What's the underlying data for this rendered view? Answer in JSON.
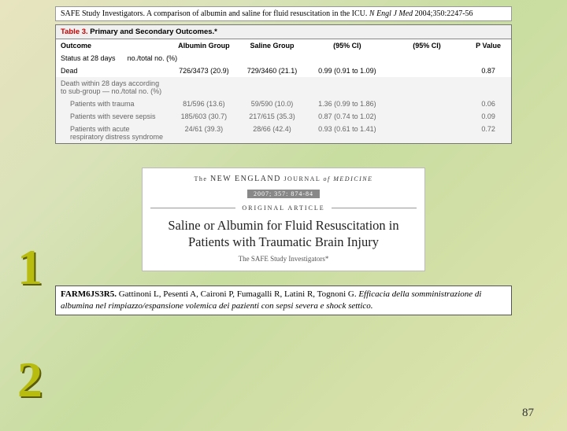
{
  "top_citation": {
    "text_pre": "SAFE Study Investigators. A comparison of albumin and saline for fluid resuscitation in the ICU. ",
    "journal": "N Engl J Med",
    "text_post": " 2004;350:2247-56"
  },
  "table": {
    "title_red": "Table 3.",
    "title_black": " Primary and Secondary Outcomes.*",
    "headers": [
      "Outcome",
      "Albumin Group",
      "Saline Group",
      "(95% CI)",
      "(95% CI)",
      "P Value"
    ],
    "status_row": {
      "label": "Status at 28 days",
      "subnote": "no./total no. (%)"
    },
    "rows": [
      {
        "label": "Dead",
        "albumin": "726/3473 (20.9)",
        "saline": "729/3460 (21.1)",
        "ci1": "0.99 (0.91 to 1.09)",
        "ci2": "",
        "p": "0.87",
        "cls": "row-light"
      },
      {
        "label": "Death within 28 days according to sub-group — no./total no. (%)",
        "albumin": "",
        "saline": "",
        "ci1": "",
        "ci2": "",
        "p": "",
        "cls": "row-gray"
      },
      {
        "label": "Patients with trauma",
        "albumin": "81/596 (13.6)",
        "saline": "59/590 (10.0)",
        "ci1": "1.36 (0.99 to 1.86)",
        "ci2": "",
        "p": "0.06",
        "cls": "row-gray",
        "indent": true
      },
      {
        "label": "Patients with severe sepsis",
        "albumin": "185/603 (30.7)",
        "saline": "217/615 (35.3)",
        "ci1": "0.87 (0.74 to 1.02)",
        "ci2": "",
        "p": "0.09",
        "cls": "row-gray",
        "indent": true
      },
      {
        "label": "Patients with acute respiratory distress syndrome",
        "albumin": "24/61 (39.3)",
        "saline": "28/66 (42.4)",
        "ci1": "0.93 (0.61 to 1.41)",
        "ci2": "",
        "p": "0.72",
        "cls": "row-gray",
        "indent": true
      }
    ]
  },
  "nejm": {
    "header_pre": "The ",
    "header_big1": "NEW ENGLAND",
    "header_mid": " JOURNAL ",
    "header_suffix": "of MEDICINE",
    "date": "2007; 357: 874-84",
    "orig": "ORIGINAL ARTICLE",
    "title": "Saline or Albumin for Fluid Resuscitation in Patients with Traumatic Brain Injury",
    "authors": "The SAFE Study Investigators*"
  },
  "farm": {
    "code": "FARM6JS3R5.",
    "authors": " Gattinoni L, Pesenti A, Caironi P, Fumagalli R, Latini R, Tognoni G. ",
    "title_ital": "Efficacia della somministrazione di albumina nel rimpiazzo/espansione volemica dei pazienti con sepsi severa e shock settico."
  },
  "digits": {
    "one": "1",
    "two": "2"
  },
  "page_number": "87"
}
